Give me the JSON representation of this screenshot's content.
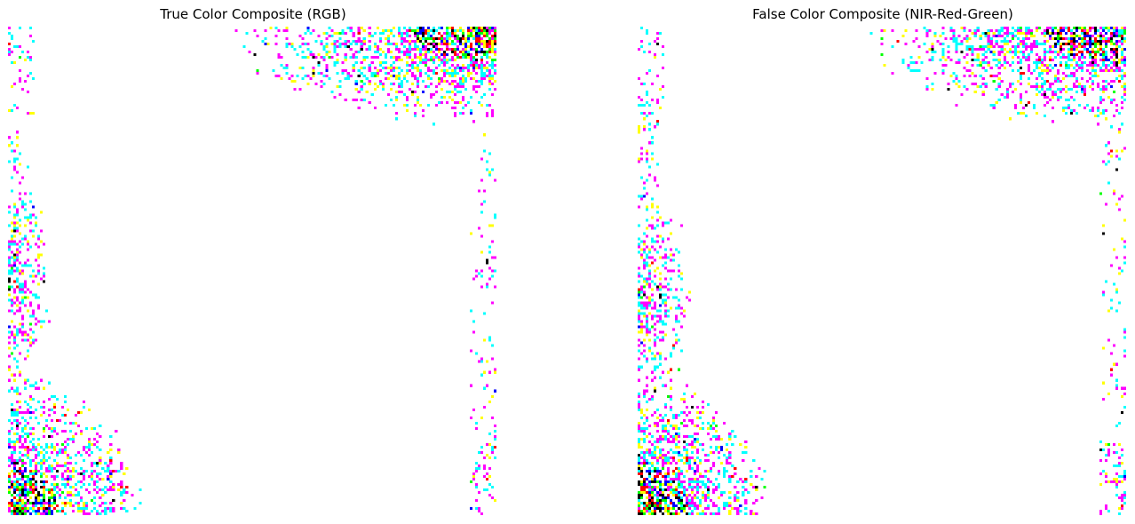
{
  "figure": {
    "panels": [
      {
        "id": "true-color",
        "title": "True Color Composite (RGB)"
      },
      {
        "id": "false-color",
        "title": "False Color Composite (NIR-Red-Green)"
      }
    ]
  },
  "colors": {
    "background": "#ffffff",
    "palette": [
      "#ff00ff",
      "#00ffff",
      "#ffff00",
      "#ff0000",
      "#00ff00",
      "#0000ff",
      "#000000"
    ]
  }
}
